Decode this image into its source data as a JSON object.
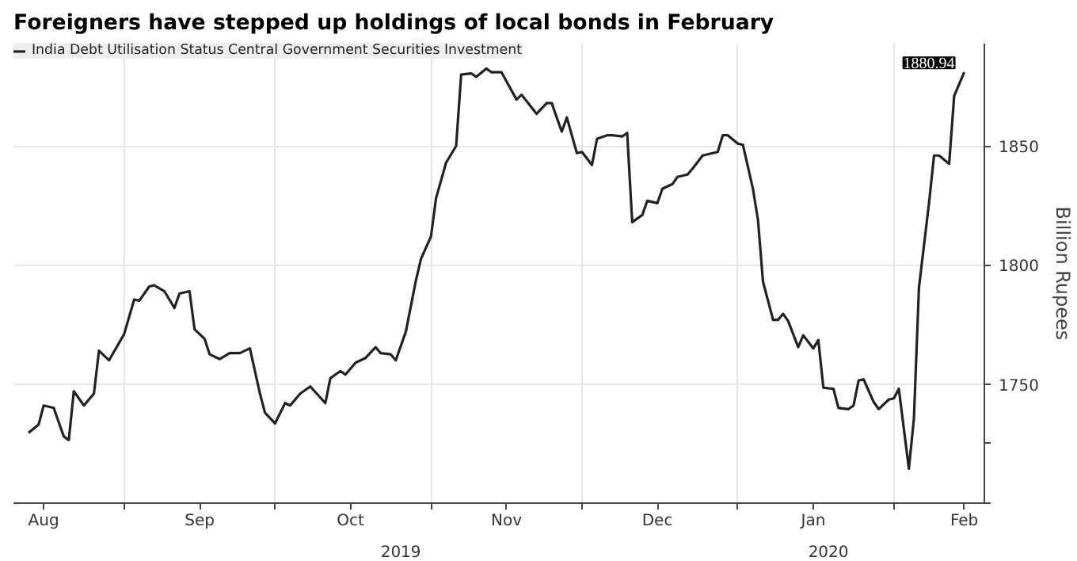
{
  "chart_data": {
    "type": "line",
    "title": "Foreigners have stepped up holdings of local bonds in February",
    "ylabel": "Billion Rupees",
    "x": [
      "2019-08-13",
      "2019-08-15",
      "2019-08-16",
      "2019-08-18",
      "2019-08-20",
      "2019-08-21",
      "2019-08-22",
      "2019-08-24",
      "2019-08-26",
      "2019-08-27",
      "2019-08-29",
      "2019-09-01",
      "2019-09-03",
      "2019-09-04",
      "2019-09-06",
      "2019-09-07",
      "2019-09-09",
      "2019-09-11",
      "2019-09-12",
      "2019-09-14",
      "2019-09-15",
      "2019-09-17",
      "2019-09-18",
      "2019-09-20",
      "2019-09-22",
      "2019-09-24",
      "2019-09-26",
      "2019-09-28",
      "2019-09-29",
      "2019-10-01",
      "2019-10-03",
      "2019-10-04",
      "2019-10-06",
      "2019-10-08",
      "2019-10-11",
      "2019-10-12",
      "2019-10-14",
      "2019-10-15",
      "2019-10-17",
      "2019-10-19",
      "2019-10-21",
      "2019-10-22",
      "2019-10-24",
      "2019-10-25",
      "2019-10-27",
      "2019-10-29",
      "2019-10-30",
      "2019-11-01",
      "2019-11-02",
      "2019-11-04",
      "2019-11-06",
      "2019-11-07",
      "2019-11-09",
      "2019-11-10",
      "2019-11-12",
      "2019-11-13",
      "2019-11-15",
      "2019-11-18",
      "2019-11-19",
      "2019-11-22",
      "2019-11-24",
      "2019-11-25",
      "2019-11-27",
      "2019-11-28",
      "2019-11-30",
      "2019-12-01",
      "2019-12-03",
      "2019-12-04",
      "2019-12-06",
      "2019-12-07",
      "2019-12-09",
      "2019-12-10",
      "2019-12-11",
      "2019-12-13",
      "2019-12-14",
      "2019-12-16",
      "2019-12-17",
      "2019-12-19",
      "2019-12-20",
      "2019-12-22",
      "2019-12-23",
      "2019-12-25",
      "2019-12-26",
      "2019-12-28",
      "2019-12-29",
      "2019-12-30",
      "2020-01-01",
      "2020-01-02",
      "2020-01-04",
      "2020-01-05",
      "2020-01-06",
      "2020-01-08",
      "2020-01-09",
      "2020-01-10",
      "2020-01-11",
      "2020-01-13",
      "2020-01-14",
      "2020-01-16",
      "2020-01-17",
      "2020-01-18",
      "2020-01-20",
      "2020-01-21",
      "2020-01-23",
      "2020-01-24",
      "2020-01-25",
      "2020-01-26",
      "2020-01-28",
      "2020-01-29",
      "2020-01-31",
      "2020-02-01",
      "2020-02-02",
      "2020-02-04",
      "2020-02-05",
      "2020-02-06",
      "2020-02-08",
      "2020-02-09",
      "2020-02-10",
      "2020-02-12",
      "2020-02-13",
      "2020-02-15"
    ],
    "series": [
      {
        "name": "India Debt Utilisation Status Central Government Securities Investment",
        "color": "#222222",
        "values": [
          1729.5,
          1733,
          1741,
          1740,
          1728,
          1726.5,
          1747,
          1741,
          1746,
          1764,
          1760,
          1771,
          1785.5,
          1785,
          1791,
          1791.5,
          1789,
          1782,
          1788,
          1789,
          1773,
          1769,
          1762.5,
          1760.5,
          1763,
          1763,
          1765,
          1746,
          1738,
          1733.5,
          1742,
          1741,
          1746,
          1749,
          1742,
          1752.5,
          1755.5,
          1754,
          1759,
          1761,
          1765.5,
          1763,
          1762.5,
          1760,
          1772,
          1793.5,
          1802.5,
          1812,
          1828,
          1843,
          1850,
          1880,
          1880.5,
          1879,
          1882.5,
          1881,
          1881,
          1869.5,
          1871.5,
          1863.5,
          1868,
          1868,
          1856,
          1862,
          1847,
          1847.5,
          1842,
          1853,
          1854.5,
          1854.5,
          1854,
          1855.5,
          1818,
          1821,
          1827,
          1826,
          1832,
          1834,
          1837,
          1838,
          1840.5,
          1846,
          1846.5,
          1847.5,
          1854.5,
          1854.5,
          1851,
          1850.5,
          1832,
          1819,
          1793,
          1777,
          1777,
          1779.5,
          1776.5,
          1765.5,
          1770.5,
          1765,
          1768.5,
          1748.5,
          1748,
          1740,
          1739.5,
          1741,
          1751.5,
          1752,
          1742.5,
          1739.5,
          1743.5,
          1744,
          1748,
          1714.5,
          1735.5,
          1790.5,
          1826,
          1846,
          1846,
          1842.5,
          1871,
          1880.94
        ],
        "value_labels": [
          null,
          null,
          null,
          null,
          null,
          null,
          null,
          null,
          null,
          null,
          null,
          null,
          null,
          null,
          null,
          null,
          null,
          null,
          null,
          null,
          null,
          null,
          null,
          null,
          null,
          null,
          null,
          null,
          null,
          null,
          null,
          null,
          null,
          null,
          null,
          null,
          null,
          null,
          null,
          null,
          null,
          null,
          null,
          null,
          null,
          null,
          null,
          null,
          null,
          null,
          null,
          null,
          null,
          null,
          null,
          null,
          null,
          null,
          null,
          null,
          null,
          null,
          null,
          null,
          null,
          null,
          null,
          null,
          null,
          null,
          null,
          null,
          null,
          null,
          null,
          null,
          null,
          null,
          null,
          null,
          null,
          null,
          null,
          null,
          null,
          null,
          null,
          null,
          null,
          null,
          null,
          null,
          null,
          null,
          null,
          null,
          null,
          null,
          null,
          null,
          null,
          null,
          null,
          null,
          null,
          null,
          null,
          null,
          null,
          null,
          null,
          null,
          null,
          null,
          null,
          null,
          null,
          null,
          null,
          "1880.94"
        ]
      }
    ],
    "xlim": [
      "2019-08-10",
      "2020-02-19"
    ],
    "xticks": [
      {
        "value": "2019-08-16",
        "label": "Aug"
      },
      {
        "value": "2019-09-01",
        "label": null
      },
      {
        "value": "2019-09-16",
        "label": "Sep"
      },
      {
        "value": "2019-10-01",
        "label": null
      },
      {
        "value": "2019-10-16",
        "label": "Oct"
      },
      {
        "value": "2019-11-01",
        "label": null
      },
      {
        "value": "2019-11-16",
        "label": "Nov"
      },
      {
        "value": "2019-12-01",
        "label": null
      },
      {
        "value": "2019-12-16",
        "label": "Dec"
      },
      {
        "value": "2020-01-01",
        "label": null
      },
      {
        "value": "2020-01-16",
        "label": "Jan"
      },
      {
        "value": "2020-02-01",
        "label": null
      },
      {
        "value": "2020-02-15",
        "label": "Feb"
      }
    ],
    "x2lim": [
      "2019-08-10",
      "2020-02-19"
    ],
    "x2ticks": [
      {
        "value": "2019-10-26",
        "label": "2019"
      },
      {
        "value": "2020-01-19",
        "label": "2020"
      }
    ],
    "ylim": [
      1700,
      1893
    ],
    "yticks": [
      {
        "value": 1700,
        "label": null
      },
      {
        "value": 1725,
        "label": null
      },
      1750,
      1800,
      1850
    ],
    "grid": true,
    "legend": "top left",
    "line_style": "solid",
    "marker": "none"
  }
}
